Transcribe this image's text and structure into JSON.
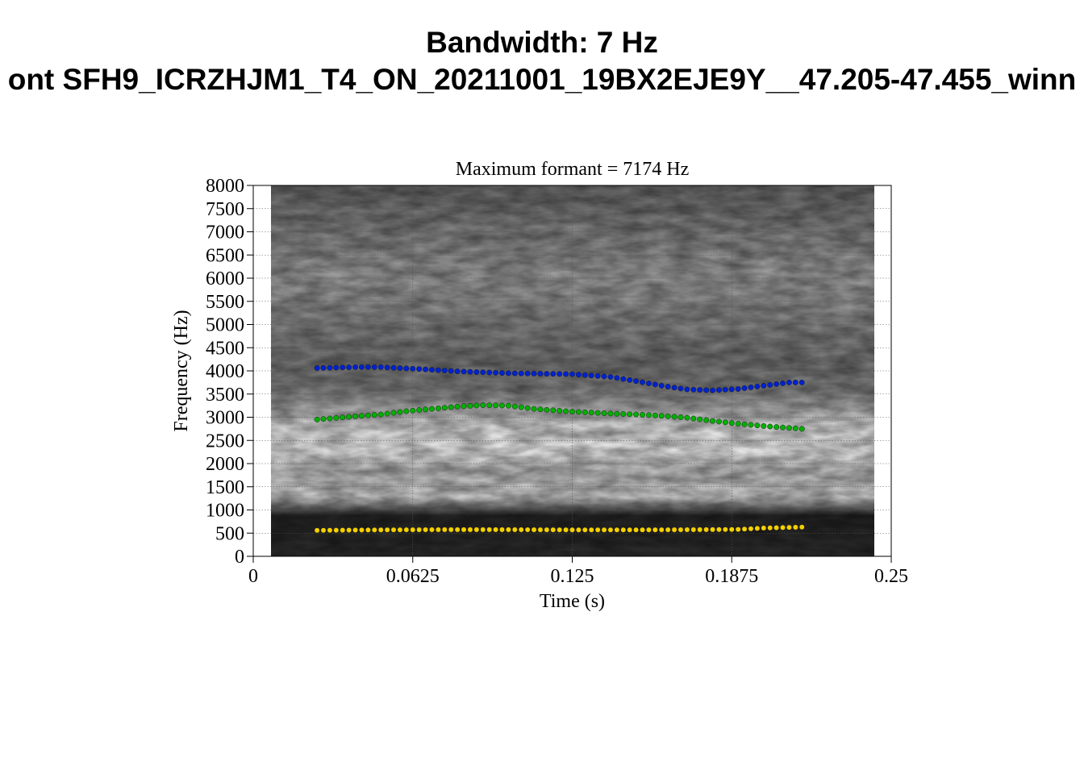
{
  "header": {
    "title_line1": "Bandwidth: 7 Hz",
    "title_line2": "ont SFH9_ICRZHJM1_T4_ON_20211001_19BX2EJE9Y__47.205-47.455_winn"
  },
  "chart_data": {
    "type": "scatter",
    "title": "Maximum formant = 7174 Hz",
    "xlabel": "Time (s)",
    "ylabel": "Frequency (Hz)",
    "xlim": [
      0,
      0.25
    ],
    "ylim": [
      0,
      8000
    ],
    "x_ticks": [
      "0",
      "0.0625",
      "0.125",
      "0.1875",
      "0.25"
    ],
    "y_ticks": [
      "0",
      "500",
      "1000",
      "1500",
      "2000",
      "2500",
      "3000",
      "3500",
      "4000",
      "4500",
      "5000",
      "5500",
      "6000",
      "6500",
      "7000",
      "7500",
      "8000"
    ],
    "grid": true,
    "background": "spectrogram (grayscale)",
    "series": [
      {
        "color": "#f5d000",
        "x": [
          0.025,
          0.05,
          0.075,
          0.1,
          0.125,
          0.15,
          0.175,
          0.19,
          0.2,
          0.215
        ],
        "y": [
          560,
          570,
          575,
          575,
          570,
          570,
          575,
          580,
          610,
          630
        ]
      },
      {
        "color": "#00b000",
        "x": [
          0.025,
          0.04,
          0.05,
          0.06,
          0.07,
          0.08,
          0.09,
          0.1,
          0.11,
          0.125,
          0.14,
          0.15,
          0.16,
          0.17,
          0.18,
          0.19,
          0.2,
          0.215
        ],
        "y": [
          2950,
          3020,
          3060,
          3130,
          3180,
          3230,
          3260,
          3250,
          3180,
          3120,
          3080,
          3060,
          3030,
          2990,
          2920,
          2860,
          2810,
          2750
        ]
      },
      {
        "color": "#0022d0",
        "x": [
          0.025,
          0.04,
          0.05,
          0.065,
          0.08,
          0.1,
          0.125,
          0.14,
          0.15,
          0.16,
          0.17,
          0.18,
          0.19,
          0.2,
          0.21,
          0.215
        ],
        "y": [
          4060,
          4080,
          4080,
          4040,
          3990,
          3950,
          3930,
          3870,
          3780,
          3680,
          3600,
          3580,
          3610,
          3680,
          3750,
          3750
        ]
      }
    ]
  }
}
